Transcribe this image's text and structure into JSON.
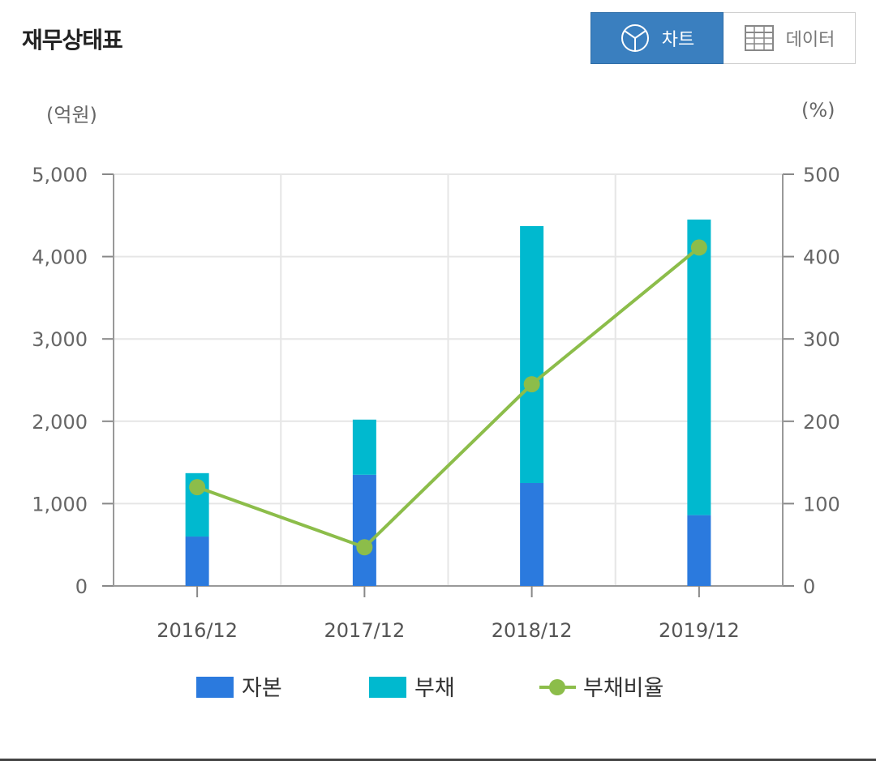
{
  "header": {
    "title": "재무상태표",
    "chart_tab": "차트",
    "data_tab": "데이터"
  },
  "units": {
    "left": "(억원)",
    "right": "(%)"
  },
  "colors": {
    "capital": "#2b7ade",
    "debt": "#00b9cf",
    "ratio": "#8cbd4a",
    "active_tab": "#3a7fbf"
  },
  "chart_data": {
    "type": "bar",
    "categories": [
      "2016/12",
      "2017/12",
      "2018/12",
      "2019/12"
    ],
    "series": [
      {
        "name": "자본",
        "type": "bar",
        "stack": "main",
        "axis": "left",
        "values": [
          600,
          1350,
          1250,
          860
        ]
      },
      {
        "name": "부채",
        "type": "bar",
        "stack": "main",
        "axis": "left",
        "values": [
          770,
          670,
          3120,
          3590
        ]
      },
      {
        "name": "부채비율",
        "type": "line",
        "axis": "right",
        "values": [
          120,
          47,
          245,
          411
        ]
      }
    ],
    "y_left": {
      "min": 0,
      "max": 5000,
      "ticks": [
        0,
        1000,
        2000,
        3000,
        4000,
        5000
      ],
      "tick_labels": [
        "0",
        "1,000",
        "2,000",
        "3,000",
        "4,000",
        "5,000"
      ]
    },
    "y_right": {
      "min": 0,
      "max": 500,
      "ticks": [
        0,
        100,
        200,
        300,
        400,
        500
      ],
      "tick_labels": [
        "0",
        "100",
        "200",
        "300",
        "400",
        "500"
      ]
    },
    "grid": true,
    "legend": "bottom"
  }
}
